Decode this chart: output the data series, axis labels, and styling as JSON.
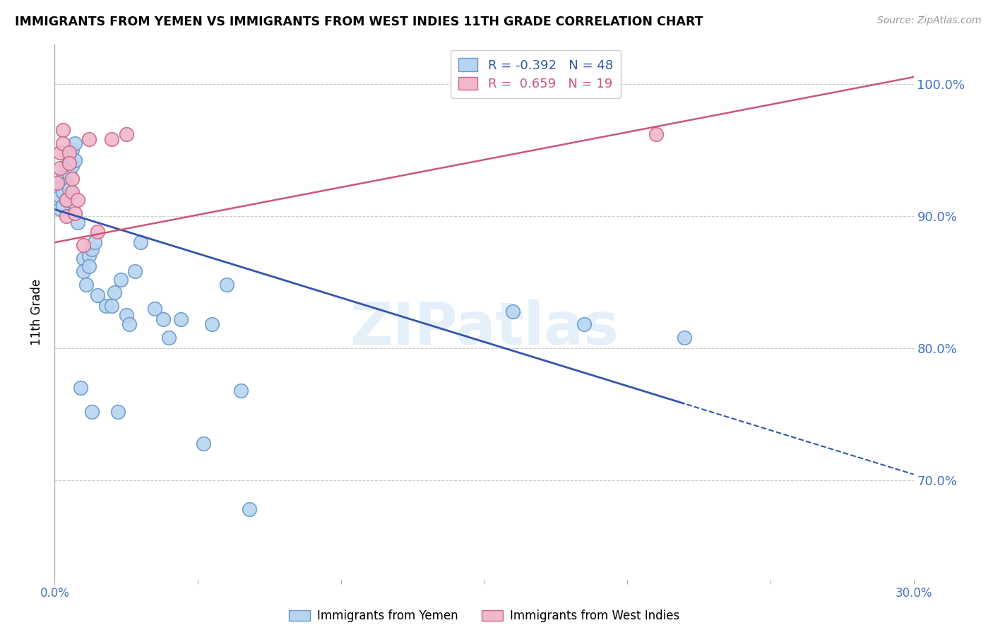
{
  "title": "IMMIGRANTS FROM YEMEN VS IMMIGRANTS FROM WEST INDIES 11TH GRADE CORRELATION CHART",
  "source": "Source: ZipAtlas.com",
  "ylabel": "11th Grade",
  "yticks": [
    0.7,
    0.8,
    0.9,
    1.0
  ],
  "ytick_labels": [
    "70.0%",
    "80.0%",
    "90.0%",
    "100.0%"
  ],
  "xlim": [
    0.0,
    0.3
  ],
  "ylim": [
    0.625,
    1.03
  ],
  "yemen_color": "#b8d4f0",
  "yemen_edge": "#6699cc",
  "west_indies_color": "#f0b8cc",
  "west_indies_edge": "#cc6688",
  "trend_yemen_color": "#3355aa",
  "trend_wi_color": "#cc5577",
  "yemen_x": [
    0.001,
    0.002,
    0.002,
    0.003,
    0.003,
    0.003,
    0.004,
    0.004,
    0.004,
    0.005,
    0.005,
    0.005,
    0.006,
    0.006,
    0.007,
    0.007,
    0.008,
    0.009,
    0.01,
    0.01,
    0.011,
    0.012,
    0.012,
    0.013,
    0.014,
    0.015,
    0.018,
    0.02,
    0.021,
    0.023,
    0.025,
    0.026,
    0.028,
    0.03,
    0.035,
    0.038,
    0.04,
    0.044,
    0.052,
    0.055,
    0.06,
    0.065,
    0.068,
    0.16,
    0.185,
    0.22,
    0.013,
    0.022
  ],
  "yemen_y": [
    0.92,
    0.915,
    0.905,
    0.93,
    0.918,
    0.908,
    0.938,
    0.925,
    0.912,
    0.945,
    0.932,
    0.92,
    0.95,
    0.938,
    0.955,
    0.942,
    0.895,
    0.77,
    0.868,
    0.858,
    0.848,
    0.87,
    0.862,
    0.875,
    0.88,
    0.84,
    0.832,
    0.832,
    0.842,
    0.852,
    0.825,
    0.818,
    0.858,
    0.88,
    0.83,
    0.822,
    0.808,
    0.822,
    0.728,
    0.818,
    0.848,
    0.768,
    0.678,
    0.828,
    0.818,
    0.808,
    0.752,
    0.752
  ],
  "wi_x": [
    0.001,
    0.002,
    0.002,
    0.003,
    0.003,
    0.004,
    0.004,
    0.005,
    0.005,
    0.006,
    0.006,
    0.007,
    0.008,
    0.01,
    0.012,
    0.015,
    0.02,
    0.025,
    0.19,
    0.21
  ],
  "wi_y": [
    0.925,
    0.948,
    0.936,
    0.965,
    0.955,
    0.912,
    0.9,
    0.948,
    0.94,
    0.918,
    0.928,
    0.902,
    0.912,
    0.878,
    0.958,
    0.888,
    0.958,
    0.962,
    0.995,
    0.962
  ]
}
